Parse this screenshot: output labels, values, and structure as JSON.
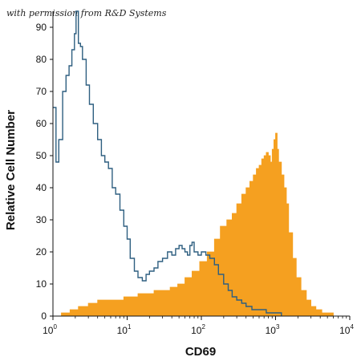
{
  "watermark": "with permission from R&D Systems",
  "chart_data": {
    "type": "area",
    "title": "",
    "xlabel": "CD69",
    "ylabel": "Relative Cell Number",
    "xscale": "log",
    "xlim": [
      1,
      10000
    ],
    "ylim": [
      0,
      95
    ],
    "grid": false,
    "x_ticks": [
      {
        "base": "10",
        "exp": "0",
        "value": 1
      },
      {
        "base": "10",
        "exp": "1",
        "value": 10
      },
      {
        "base": "10",
        "exp": "2",
        "value": 100
      },
      {
        "base": "10",
        "exp": "3",
        "value": 1000
      },
      {
        "base": "10",
        "exp": "4",
        "value": 10000
      }
    ],
    "y_ticks": [
      0,
      10,
      20,
      30,
      40,
      50,
      60,
      70,
      80,
      90
    ],
    "series": [
      {
        "style": "outline",
        "color": "#2e5f80",
        "x": [
          1,
          1.1,
          1.2,
          1.35,
          1.5,
          1.65,
          1.8,
          1.95,
          2.05,
          2.2,
          2.35,
          2.5,
          2.8,
          3.1,
          3.5,
          4,
          4.5,
          5,
          5.6,
          6.3,
          7,
          8,
          9,
          10,
          11,
          12.5,
          14,
          16,
          18,
          20,
          23,
          26,
          30,
          35,
          40,
          45,
          50,
          55,
          60,
          65,
          70,
          75,
          80,
          90,
          100,
          115,
          130,
          150,
          170,
          200,
          230,
          260,
          300,
          350,
          400,
          480,
          560,
          650,
          750,
          850,
          950,
          1100,
          1200
        ],
        "y": [
          65,
          48,
          55,
          70,
          75,
          78,
          83,
          88,
          95,
          85,
          84,
          80,
          72,
          66,
          60,
          55,
          50,
          48,
          46,
          40,
          38,
          33,
          28,
          24,
          18,
          14,
          12,
          11,
          13,
          14,
          15,
          17,
          18,
          20,
          19,
          21,
          22,
          21,
          20,
          19,
          22,
          23,
          20,
          19,
          20,
          19,
          18,
          16,
          13,
          10,
          8,
          6,
          5,
          4,
          3,
          2,
          2,
          2,
          1,
          1,
          1,
          1,
          0
        ]
      },
      {
        "style": "filled",
        "color": "#f5a020",
        "x": [
          1,
          1.3,
          1.7,
          2.2,
          3,
          4,
          5.5,
          7,
          9,
          11,
          14,
          18,
          23,
          30,
          38,
          48,
          60,
          75,
          95,
          120,
          150,
          180,
          220,
          260,
          300,
          350,
          400,
          450,
          500,
          550,
          600,
          650,
          700,
          750,
          800,
          850,
          900,
          950,
          1000,
          1050,
          1100,
          1200,
          1300,
          1400,
          1500,
          1700,
          1900,
          2200,
          2600,
          3000,
          3500,
          4200,
          5000,
          6000
        ],
        "y": [
          0,
          1,
          2,
          3,
          4,
          5,
          5,
          5,
          6,
          6,
          7,
          7,
          8,
          8,
          9,
          10,
          12,
          14,
          17,
          20,
          24,
          28,
          30,
          32,
          35,
          38,
          40,
          42,
          44,
          46,
          47,
          49,
          50,
          51,
          50,
          48,
          52,
          55,
          57,
          52,
          48,
          44,
          40,
          35,
          26,
          18,
          12,
          8,
          5,
          3,
          2,
          1,
          1,
          0
        ]
      }
    ]
  }
}
